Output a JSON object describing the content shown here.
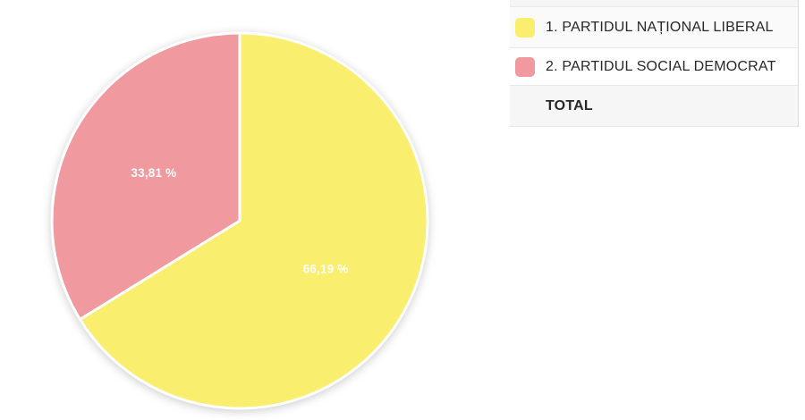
{
  "page": {
    "background": "#ffffff"
  },
  "chart_data": {
    "type": "pie",
    "unit": "%",
    "start_angle": "top",
    "direction": "clockwise",
    "slices": [
      {
        "rank": "1",
        "name": "PARTIDUL NAȚIONAL LIBERAL",
        "value": 66.19,
        "value_label": "66,19 %",
        "color": "#FAEE6E"
      },
      {
        "rank": "2",
        "name": "PARTIDUL SOCIAL DEMOCRAT",
        "value": 33.81,
        "value_label": "33,81 %",
        "color": "#F0999E"
      }
    ]
  },
  "legend": {
    "rows": [
      {
        "label": "1. PARTIDUL NAȚIONAL LIBERAL",
        "swatch_color": "#FAEE6E"
      },
      {
        "label": "2. PARTIDUL SOCIAL DEMOCRAT",
        "swatch_color": "#F0999E"
      }
    ],
    "total_label": "TOTAL"
  },
  "colors": {
    "slice_label_text": "#ffffff",
    "table_text": "#26282a",
    "row_stripe": "#f6f6f7",
    "row_border": "#e8e8e8"
  }
}
